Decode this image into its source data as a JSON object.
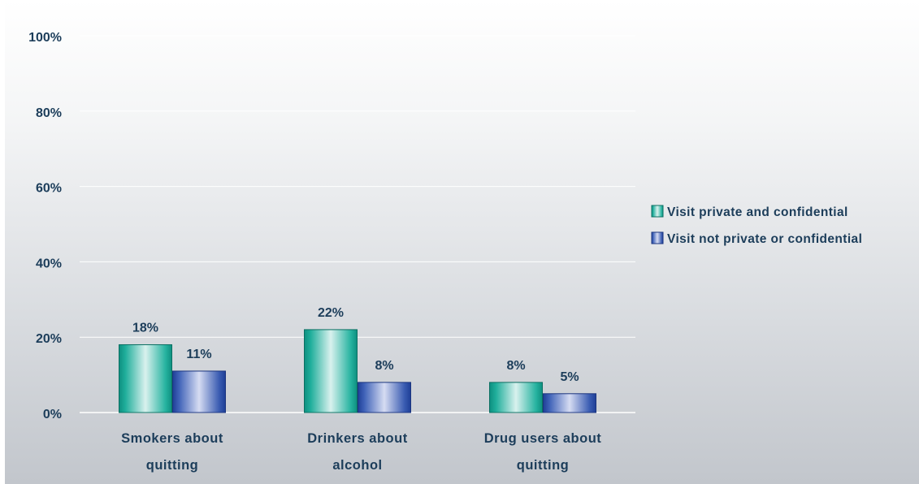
{
  "chart_data": {
    "type": "bar",
    "categories": [
      [
        "Smokers about",
        "quitting"
      ],
      [
        "Drinkers about",
        "alcohol"
      ],
      [
        "Drug users about",
        "quitting"
      ]
    ],
    "series": [
      {
        "name": "Visit private and confidential",
        "values": [
          18,
          22,
          8
        ],
        "labels": [
          "18%",
          "22%",
          "8%"
        ],
        "color": "#1fae9b"
      },
      {
        "name": "Visit not private or confidential",
        "values": [
          11,
          8,
          5
        ],
        "labels": [
          "11%",
          "8%",
          "5%"
        ],
        "color": "#3f62b8"
      }
    ],
    "ylim": [
      0,
      100
    ],
    "yticks": [
      0,
      20,
      40,
      60,
      80,
      100
    ],
    "ytick_labels": [
      "0%",
      "20%",
      "40%",
      "60%",
      "80%",
      "100%"
    ],
    "grid": true,
    "legend_position": "right"
  }
}
